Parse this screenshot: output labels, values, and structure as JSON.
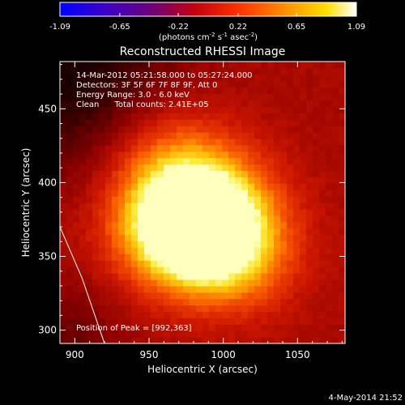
{
  "chart_data": {
    "type": "heatmap",
    "title": "Reconstructed RHESSI Image",
    "xlabel": "Heliocentric X (arcsec)",
    "ylabel": "Heliocentric Y (arcsec)",
    "xlim": [
      890,
      1082
    ],
    "ylim": [
      291,
      482
    ],
    "x_ticks": [
      900,
      950,
      1000,
      1050
    ],
    "y_ticks": [
      300,
      350,
      400,
      450
    ],
    "colorbar": {
      "min": -1.09,
      "max": 1.09,
      "ticks": [
        -1.09,
        -0.65,
        -0.22,
        0.22,
        0.65,
        1.09
      ],
      "tick_labels": [
        "-1.09",
        "-0.65",
        "-0.22",
        "0.22",
        "0.65",
        "1.09"
      ],
      "unit_text": "(photons cm",
      "unit_parts": [
        "(photons cm",
        "-2",
        " s",
        "-1",
        " asec",
        "-2",
        ")"
      ],
      "colormap": "rainbow/hot (black-blue-purple-red-orange-yellow-white)"
    },
    "annotations": [
      "14-Mar-2012 05:21:58.000 to 05:27:24.000",
      "Detectors: 3F 5F 6F 7F 8F 9F, Att 0",
      "Energy Range: 3.0 - 6.0 keV",
      "Clean      Total counts: 2.41E+05"
    ],
    "peak_label": "Position of Peak = [992,363]",
    "peak": [
      992,
      363
    ],
    "limb_curve": [
      [
        890,
        370
      ],
      [
        905,
        335
      ],
      [
        920,
        291
      ]
    ],
    "sources": [
      {
        "x": 985,
        "y": 362,
        "intensity": 1.0
      },
      {
        "x": 962,
        "y": 372,
        "intensity": 0.85
      },
      {
        "x": 995,
        "y": 385,
        "intensity": 0.75
      },
      {
        "x": 965,
        "y": 415,
        "intensity": 0.6
      },
      {
        "x": 1010,
        "y": 350,
        "intensity": 0.55
      }
    ]
  },
  "footer": {
    "date": "4-May-2014 21:52"
  }
}
